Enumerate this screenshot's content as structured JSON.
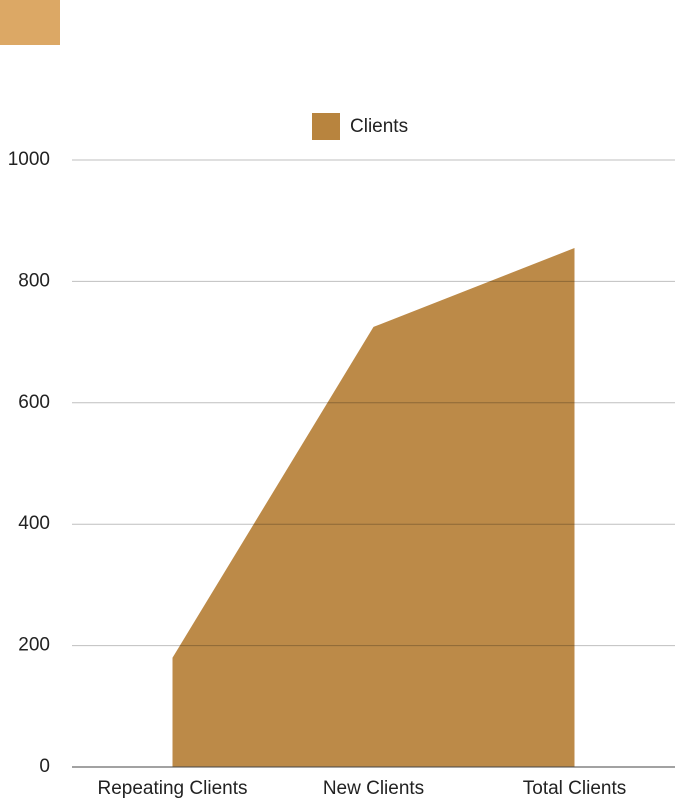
{
  "chart_data": {
    "type": "area",
    "series": [
      {
        "name": "Clients",
        "color": "#b8843e",
        "values": [
          180,
          725,
          855
        ]
      }
    ],
    "categories": [
      "Repeating Clients",
      "New Clients",
      "Total Clients"
    ],
    "ylim": [
      0,
      1000
    ],
    "yticks": [
      0,
      200,
      400,
      600,
      800,
      1000
    ],
    "grid": true,
    "legend": "top"
  }
}
